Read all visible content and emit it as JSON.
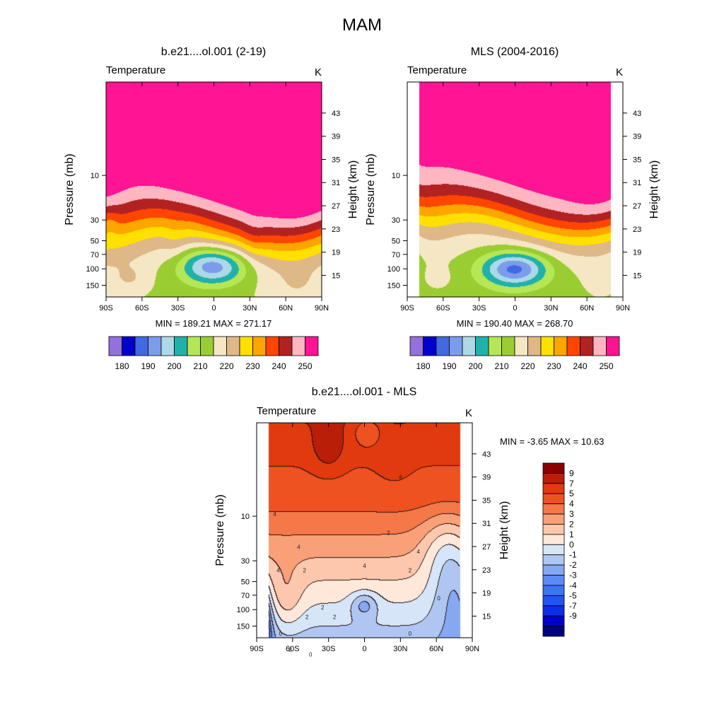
{
  "figure": {
    "title": "MAM"
  },
  "palette": {
    "abs_colors": [
      "#9370DB",
      "#0000CD",
      "#4169E1",
      "#7B9CEB",
      "#ADD8E6",
      "#20B2AA",
      "#B5E655",
      "#9ACD32",
      "#F5E6C4",
      "#DEB887",
      "#FFE000",
      "#FFA500",
      "#FF4500",
      "#B22222",
      "#FFB6C1",
      "#FF1493"
    ],
    "abs_labels": [
      "180",
      "190",
      "200",
      "210",
      "220",
      "230",
      "240",
      "250"
    ],
    "diff_colors": [
      "#000080",
      "#0000CD",
      "#0A2FE6",
      "#2255F0",
      "#3D74F5",
      "#5C8BF5",
      "#86A8F2",
      "#AFC6F2",
      "#D6E6F8",
      "#FDE8DA",
      "#FCC7AC",
      "#F9A078",
      "#F57848",
      "#EE5220",
      "#E03A0E",
      "#B81E08",
      "#8B0000"
    ],
    "diff_labels": [
      "9",
      "7",
      "5",
      "4",
      "3",
      "2",
      "1",
      "0",
      "-1",
      "-2",
      "-3",
      "-4",
      "-5",
      "-7",
      "-9"
    ]
  },
  "chart_data": [
    {
      "type": "contour",
      "id": "model",
      "title": "b.e21....ol.001 (2-19)",
      "left_title": "Temperature",
      "units": "K",
      "ylabel": "Pressure (mb)",
      "ylabel_right": "Height (km)",
      "x_ticks": [
        "90S",
        "60S",
        "30S",
        "0",
        "30N",
        "60N",
        "90N"
      ],
      "x_values": [
        -90,
        -60,
        -30,
        0,
        30,
        60,
        90
      ],
      "y_ticks": [
        "10",
        "30",
        "50",
        "70",
        "100",
        "150"
      ],
      "y_values": [
        10,
        30,
        50,
        70,
        100,
        150
      ],
      "y_log": true,
      "y_range": [
        1,
        200
      ],
      "right_ticks": [
        "43",
        "39",
        "35",
        "31",
        "27",
        "23",
        "19",
        "15"
      ],
      "right_values": [
        43,
        39,
        35,
        31,
        27,
        23,
        19,
        15
      ],
      "min_max": "MIN = 189.21  MAX = 271.17",
      "levels": [
        180,
        185,
        190,
        195,
        200,
        205,
        210,
        215,
        220,
        225,
        230,
        235,
        240,
        245,
        250
      ]
    },
    {
      "type": "contour",
      "id": "obs",
      "title": "MLS (2004-2016)",
      "left_title": "Temperature",
      "units": "K",
      "ylabel": "Pressure (mb)",
      "ylabel_right": "Height (km)",
      "x_ticks": [
        "90S",
        "60S",
        "30S",
        "0",
        "30N",
        "60N",
        "90N"
      ],
      "x_values": [
        -90,
        -60,
        -30,
        0,
        30,
        60,
        90
      ],
      "y_ticks": [
        "10",
        "30",
        "50",
        "70",
        "100",
        "150"
      ],
      "y_values": [
        10,
        30,
        50,
        70,
        100,
        150
      ],
      "y_log": true,
      "y_range": [
        1,
        200
      ],
      "right_ticks": [
        "43",
        "39",
        "35",
        "31",
        "27",
        "23",
        "19",
        "15"
      ],
      "right_values": [
        43,
        39,
        35,
        31,
        27,
        23,
        19,
        15
      ],
      "min_max": "MIN = 190.40  MAX = 268.70",
      "data_lat_range": [
        -80,
        80
      ],
      "levels": [
        180,
        185,
        190,
        195,
        200,
        205,
        210,
        215,
        220,
        225,
        230,
        235,
        240,
        245,
        250
      ]
    },
    {
      "type": "contour",
      "id": "diff",
      "title": "b.e21....ol.001 - MLS",
      "left_title": "Temperature",
      "units": "K",
      "ylabel": "Pressure (mb)",
      "ylabel_right": "Height (km)",
      "x_ticks": [
        "90S",
        "60S",
        "30S",
        "0",
        "30N",
        "60N",
        "90N"
      ],
      "x_values": [
        -90,
        -60,
        -30,
        0,
        30,
        60,
        90
      ],
      "y_ticks": [
        "10",
        "30",
        "50",
        "70",
        "100",
        "150"
      ],
      "y_values": [
        10,
        30,
        50,
        70,
        100,
        150
      ],
      "y_log": true,
      "y_range": [
        1,
        200
      ],
      "right_ticks": [
        "43",
        "39",
        "35",
        "31",
        "27",
        "23",
        "19",
        "15"
      ],
      "right_values": [
        43,
        39,
        35,
        31,
        27,
        23,
        19,
        15
      ],
      "min_max": "MIN =  -3.65  MAX =  10.63",
      "data_lat_range": [
        -80,
        80
      ],
      "levels": [
        -9,
        -7,
        -5,
        -4,
        -3,
        -2,
        -1,
        0,
        1,
        2,
        3,
        4,
        5,
        7,
        9
      ],
      "contour_labels": [
        "4",
        "4",
        "4",
        "4",
        "4",
        "4",
        "2",
        "2",
        "2",
        "2",
        "2",
        "2",
        "2",
        "0",
        "0",
        "0",
        "0"
      ]
    }
  ]
}
